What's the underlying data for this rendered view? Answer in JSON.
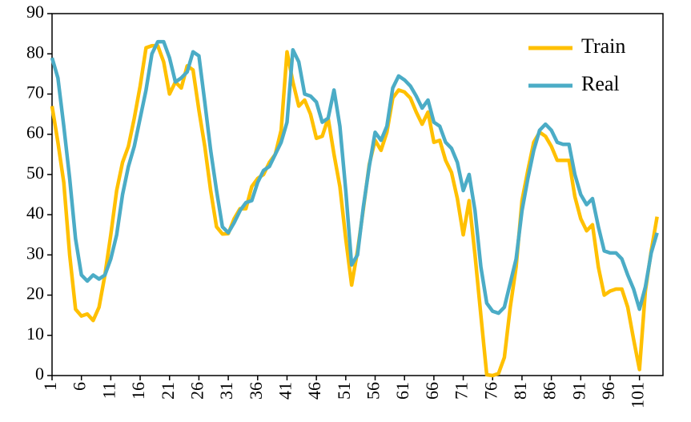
{
  "chart_data": {
    "type": "line",
    "x": [
      1,
      2,
      3,
      4,
      5,
      6,
      7,
      8,
      9,
      10,
      11,
      12,
      13,
      14,
      15,
      16,
      17,
      18,
      19,
      20,
      21,
      22,
      23,
      24,
      25,
      26,
      27,
      28,
      29,
      30,
      31,
      32,
      33,
      34,
      35,
      36,
      37,
      38,
      39,
      40,
      41,
      42,
      43,
      44,
      45,
      46,
      47,
      48,
      49,
      50,
      51,
      52,
      53,
      54,
      55,
      56,
      57,
      58,
      59,
      60,
      61,
      62,
      63,
      64,
      65,
      66,
      67,
      68,
      69,
      70,
      71,
      72,
      73,
      74,
      75,
      76,
      77,
      78,
      79,
      80,
      81,
      82,
      83,
      84,
      85,
      86,
      87,
      88,
      89,
      90,
      91,
      92,
      93,
      94,
      95,
      96,
      97,
      98,
      99,
      100,
      101,
      102,
      103,
      104
    ],
    "series": [
      {
        "name": "Train",
        "color": "#ffc000",
        "values": [
          67,
          58,
          48,
          30,
          16.5,
          14.8,
          15.3,
          13.7,
          17,
          25,
          35,
          46,
          53,
          57,
          64,
          72,
          81.5,
          82,
          82,
          78,
          70,
          73,
          71.5,
          77,
          76,
          66,
          57,
          46,
          37,
          35.2,
          35.3,
          39,
          41.5,
          41.5,
          47,
          49,
          50,
          53,
          55,
          61,
          80.5,
          73,
          67,
          68.5,
          65,
          59,
          59.5,
          64,
          55,
          47,
          34,
          22.5,
          31,
          41.5,
          52.5,
          58.5,
          56,
          60.5,
          69,
          71,
          70.5,
          69,
          65.5,
          62.5,
          65.5,
          58,
          58.5,
          53.5,
          50.5,
          44,
          35,
          43.5,
          30,
          15,
          0.2,
          0,
          0.5,
          4.5,
          17,
          27,
          43.5,
          51,
          58,
          60.5,
          59.5,
          57,
          53.5,
          53.5,
          53.5,
          44.5,
          39,
          36,
          37.5,
          27,
          20,
          21,
          21.5,
          21.5,
          17,
          9,
          1.5,
          21,
          31,
          39.5
        ]
      },
      {
        "name": "Real",
        "color": "#4bacc6",
        "values": [
          79,
          74,
          62,
          49,
          34,
          25,
          23.5,
          25,
          24,
          25,
          29,
          35,
          45,
          52,
          57,
          64,
          71,
          80,
          83,
          83,
          79,
          73,
          74,
          75.5,
          80.5,
          79.5,
          68,
          56,
          46,
          37,
          35.5,
          38,
          41,
          43,
          43.5,
          48,
          51,
          52,
          55,
          58,
          63,
          81,
          78,
          70,
          69.5,
          68,
          63,
          64,
          71,
          62,
          46,
          27.5,
          30,
          42,
          52,
          60.5,
          58.5,
          62,
          71.5,
          74.5,
          73.5,
          72,
          69.5,
          66.5,
          68.5,
          63,
          62,
          58,
          56.5,
          53,
          46,
          50,
          41,
          27,
          18,
          16,
          15.5,
          17,
          23,
          29,
          41,
          49,
          56,
          61,
          62.5,
          61,
          58,
          57.5,
          57.5,
          50,
          45,
          42.5,
          44,
          37,
          31,
          30.5,
          30.5,
          29,
          25,
          21.5,
          16.5,
          22,
          30.5,
          35.5
        ]
      }
    ],
    "xlim": [
      1,
      105
    ],
    "xticks": [
      1,
      6,
      11,
      16,
      21,
      26,
      31,
      36,
      41,
      46,
      51,
      56,
      61,
      66,
      71,
      76,
      81,
      86,
      91,
      96,
      101
    ],
    "ylim": [
      0,
      90
    ],
    "yticks": [
      0,
      10,
      20,
      30,
      40,
      50,
      60,
      70,
      80,
      90
    ],
    "legend": "upper right"
  }
}
